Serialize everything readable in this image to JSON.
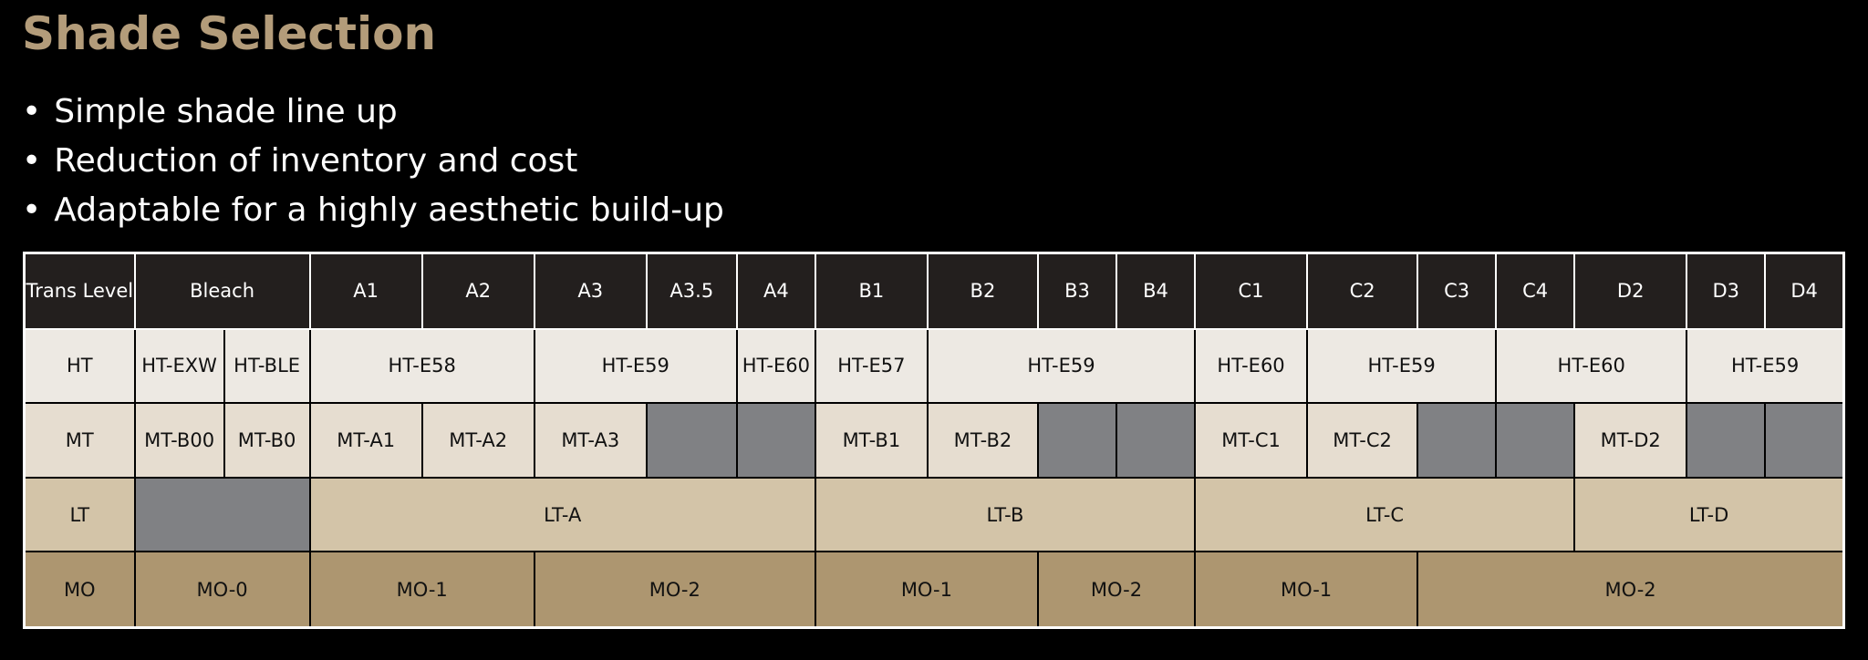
{
  "title": "Shade Selection",
  "bullets": [
    "Simple shade line up",
    "Reduction of inventory and cost",
    "Adaptable for a highly aesthetic build-up"
  ],
  "table": {
    "header": [
      "Trans Level",
      "Bleach",
      "A1",
      "A2",
      "A3",
      "A3.5",
      "A4",
      "B1",
      "B2",
      "B3",
      "B4",
      "C1",
      "C2",
      "C3",
      "C4",
      "D2",
      "D3",
      "D4"
    ],
    "rows": [
      [
        "HT",
        "HT-EXW",
        "HT-BLE",
        "HT-E58",
        "HT-E59",
        "HT-E60",
        "HT-E57",
        "HT-E59",
        "HT-E60",
        "HT-E59",
        "HT-E60",
        "HT-E59"
      ],
      [
        "MT",
        "MT-B00",
        "MT-B0",
        "MT-A1",
        "MT-A2",
        "MT-A3",
        "MT-B1",
        "MT-B2",
        "MT-C1",
        "MT-C2",
        "MT-D2"
      ],
      [
        "LT",
        "LT-A",
        "LT-B",
        "LT-C",
        "LT-D"
      ],
      [
        "MO",
        "MO-0",
        "MO-1",
        "MO-2",
        "MO-1",
        "MO-2",
        "MO-1",
        "MO-2"
      ]
    ]
  }
}
